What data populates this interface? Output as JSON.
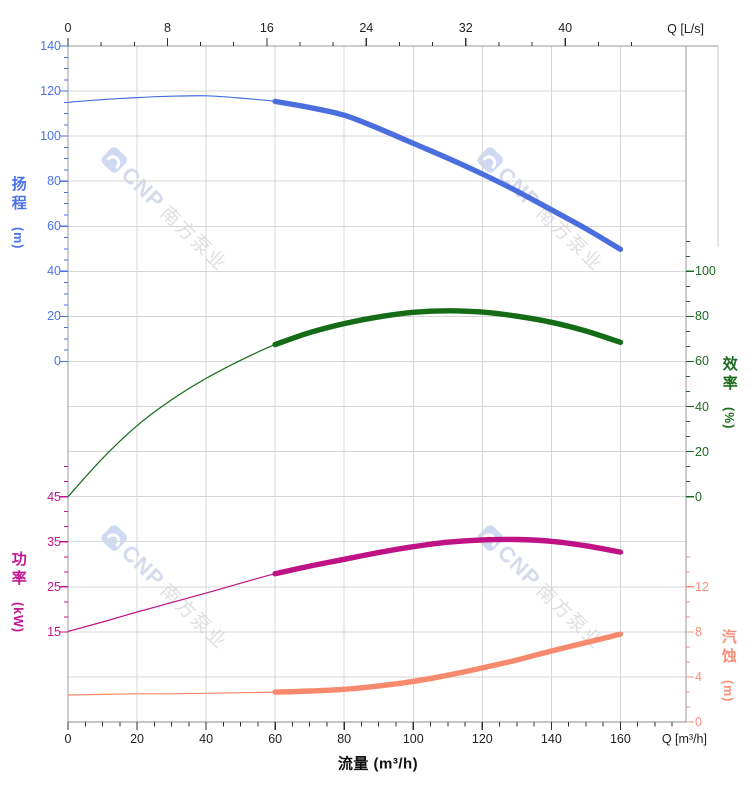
{
  "watermark": {
    "cnp": "CNP",
    "cn": "南方泵业"
  },
  "chart_data": {
    "type": "line",
    "title": "",
    "x": [
      0,
      10,
      20,
      30,
      40,
      50,
      60,
      70,
      80,
      90,
      100,
      110,
      120,
      130,
      140,
      150,
      160
    ],
    "series": [
      {
        "name": "扬程",
        "axis": "head",
        "unit": "m",
        "color": "#4a6edd",
        "bold_from": 60,
        "values": [
          115,
          116.2,
          117.1,
          117.7,
          117.9,
          116.9,
          115.4,
          112.7,
          109.3,
          103.4,
          96.8,
          90.2,
          83.2,
          75.6,
          67.3,
          58.9,
          49.8
        ]
      },
      {
        "name": "效率",
        "axis": "eff",
        "unit": "%",
        "color": "#146c16",
        "bold_from": 60,
        "values": [
          0,
          17,
          31.5,
          43,
          52.5,
          60.5,
          67.5,
          72.8,
          76.8,
          79.8,
          81.8,
          82.5,
          81.9,
          80.1,
          77.4,
          73.5,
          68.5
        ]
      },
      {
        "name": "功率",
        "axis": "power",
        "unit": "kW",
        "color": "#bf1284",
        "bold_from": 60,
        "values": [
          15.1,
          17.2,
          19.4,
          21.5,
          23.6,
          25.8,
          27.9,
          29.6,
          31.1,
          32.6,
          33.9,
          34.9,
          35.4,
          35.5,
          35.1,
          34.1,
          32.7
        ]
      },
      {
        "name": "汽蚀",
        "axis": "npsh",
        "unit": "m",
        "color": "#f78a6d",
        "bold_from": 60,
        "values": [
          2.4,
          2.45,
          2.5,
          2.5,
          2.55,
          2.6,
          2.65,
          2.75,
          2.9,
          3.2,
          3.6,
          4.15,
          4.8,
          5.5,
          6.3,
          7.05,
          7.8
        ]
      }
    ],
    "axes": {
      "x_bottom": {
        "title": "流量 (m³/h)",
        "corner_label": "Q [m³/h]",
        "color": "#1f1f1f",
        "ticks": [
          0,
          20,
          40,
          60,
          80,
          100,
          120,
          140,
          160
        ],
        "minor_step": 5,
        "max": 175
      },
      "x_top": {
        "corner_label": "Q [L/s]",
        "color": "#1f1f1f",
        "ticks": [
          0,
          8,
          16,
          24,
          32,
          40
        ],
        "m3h_per_unit": 3.6
      },
      "head": {
        "title": "扬程",
        "unit": "(m)",
        "color": "#4a73e8",
        "ticks": [
          140,
          120,
          100,
          80,
          60,
          40,
          20,
          0
        ]
      },
      "eff": {
        "title": "效率",
        "unit": "(%)",
        "color": "#1b6b1f",
        "ticks": [
          100,
          80,
          60,
          40,
          20,
          0
        ]
      },
      "power": {
        "title": "功率",
        "unit": "(kW)",
        "color": "#c41492",
        "ticks": [
          45,
          35,
          25,
          15
        ]
      },
      "npsh": {
        "title": "汽蚀",
        "unit": "(m)",
        "color": "#f8907e",
        "ticks": [
          12,
          8,
          4,
          0
        ]
      }
    },
    "grid": {
      "on": true,
      "color": "#d7d7d7"
    },
    "legend_position": "none"
  }
}
